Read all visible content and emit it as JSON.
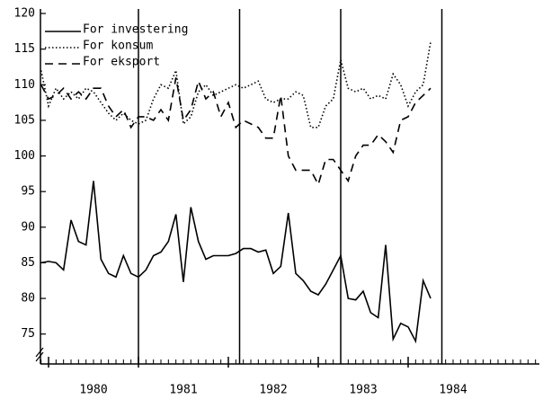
{
  "chart_data": {
    "type": "line",
    "x": [
      1979.917,
      1980.0,
      1980.083,
      1980.167,
      1980.25,
      1980.333,
      1980.417,
      1980.5,
      1980.583,
      1980.667,
      1980.75,
      1980.833,
      1980.917,
      1981.0,
      1981.083,
      1981.167,
      1981.25,
      1981.333,
      1981.417,
      1981.5,
      1981.583,
      1981.667,
      1981.75,
      1981.833,
      1981.917,
      1982.0,
      1982.083,
      1982.167,
      1982.25,
      1982.333,
      1982.417,
      1982.5,
      1982.583,
      1982.667,
      1982.75,
      1982.833,
      1982.917,
      1983.0,
      1983.083,
      1983.167,
      1983.25,
      1983.333,
      1983.417,
      1983.5,
      1983.583,
      1983.667,
      1983.75,
      1983.833,
      1983.917,
      1984.0,
      1984.083,
      1984.167,
      1984.25
    ],
    "series": [
      {
        "name": "For investering",
        "color": "#000000",
        "dash": "solid",
        "values": [
          85,
          85.2,
          85,
          84,
          91,
          88,
          87.5,
          96.5,
          85.5,
          83.5,
          83,
          86,
          83.5,
          83,
          84,
          86,
          86.5,
          88,
          91.8,
          82.3,
          92.8,
          88,
          85.5,
          86,
          86,
          86,
          86.3,
          87,
          87,
          86.5,
          86.8,
          83.5,
          84.5,
          92,
          83.5,
          82.5,
          81,
          80.5,
          82,
          84,
          86,
          80,
          79.8,
          81,
          78,
          77.3,
          87.5,
          74.3,
          76.5,
          76,
          74,
          82.5,
          80
        ]
      },
      {
        "name": "For konsum",
        "color": "#000000",
        "dash": "dotted",
        "values": [
          112,
          107,
          109.5,
          108,
          109,
          108,
          109.5,
          109,
          107.5,
          106,
          105,
          106,
          105,
          104.5,
          105,
          108,
          110,
          109.5,
          112,
          104.5,
          105.5,
          109,
          110,
          108.5,
          109,
          109.5,
          110,
          109.5,
          110,
          110.5,
          108,
          107.5,
          108,
          108,
          109,
          108.5,
          104,
          104,
          107,
          108,
          113.5,
          109.5,
          109,
          109.5,
          108,
          108.5,
          108,
          111.5,
          110,
          107,
          109,
          110,
          116
        ]
      },
      {
        "name": "For eksport",
        "color": "#000000",
        "dash": "dashed",
        "values": [
          110,
          108,
          108.5,
          109.5,
          108,
          109,
          108,
          109.5,
          109.5,
          107,
          105.5,
          106.5,
          104,
          105.5,
          105.5,
          105,
          106.5,
          105,
          111,
          105,
          106.5,
          110.5,
          108,
          109,
          105.5,
          107.5,
          104,
          105,
          104.5,
          104,
          102.5,
          102.5,
          108.5,
          100,
          98,
          98,
          98,
          96,
          99.5,
          99.5,
          98,
          96.5,
          100,
          101.5,
          101.5,
          103,
          102,
          100.5,
          105,
          105.5,
          107.5,
          108.5,
          109.5
        ]
      }
    ],
    "xlim": [
      1979.91,
      1985.46
    ],
    "xticks": [
      1980,
      1981,
      1982,
      1983,
      1984
    ],
    "ylim": [
      70.8,
      120
    ],
    "yticks": [
      75,
      80,
      85,
      90,
      95,
      100,
      105,
      110,
      115,
      120
    ],
    "vlines": [
      1981.0,
      1982.125,
      1983.25,
      1984.375
    ],
    "legend": "upper left"
  }
}
